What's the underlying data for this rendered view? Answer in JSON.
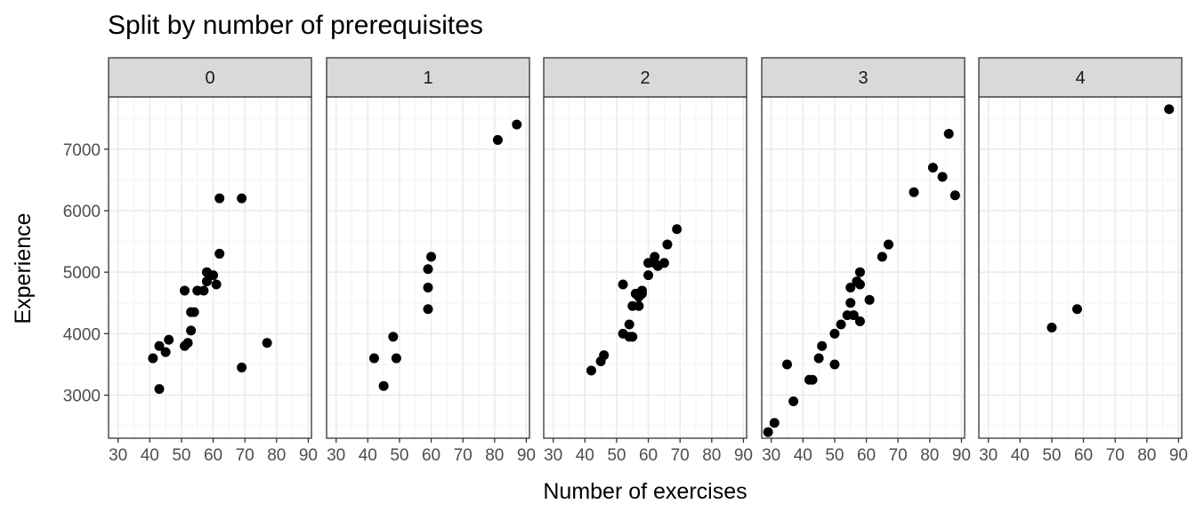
{
  "chart_data": {
    "type": "scatter",
    "title": "Split by number of prerequisites",
    "xlabel": "Number of exercises",
    "ylabel": "Experience",
    "xlim": [
      27,
      91
    ],
    "ylim": [
      2300,
      7850
    ],
    "x_ticks": [
      30,
      40,
      50,
      60,
      70,
      80,
      90
    ],
    "y_ticks": [
      3000,
      4000,
      5000,
      6000,
      7000
    ],
    "grid": true,
    "facet_by": "number of prerequisites",
    "panels": [
      {
        "label": "0",
        "points": [
          {
            "x": 41,
            "y": 3600
          },
          {
            "x": 43,
            "y": 3100
          },
          {
            "x": 43,
            "y": 3800
          },
          {
            "x": 45,
            "y": 3700
          },
          {
            "x": 46,
            "y": 3900
          },
          {
            "x": 51,
            "y": 3800
          },
          {
            "x": 51,
            "y": 4700
          },
          {
            "x": 52,
            "y": 3850
          },
          {
            "x": 53,
            "y": 4050
          },
          {
            "x": 53,
            "y": 4350
          },
          {
            "x": 54,
            "y": 4350
          },
          {
            "x": 55,
            "y": 4700
          },
          {
            "x": 57,
            "y": 4700
          },
          {
            "x": 58,
            "y": 4850
          },
          {
            "x": 58,
            "y": 5000
          },
          {
            "x": 60,
            "y": 4950
          },
          {
            "x": 61,
            "y": 4800
          },
          {
            "x": 62,
            "y": 5300
          },
          {
            "x": 62,
            "y": 6200
          },
          {
            "x": 69,
            "y": 6200
          },
          {
            "x": 69,
            "y": 3450
          },
          {
            "x": 77,
            "y": 3850
          }
        ]
      },
      {
        "label": "1",
        "points": [
          {
            "x": 42,
            "y": 3600
          },
          {
            "x": 45,
            "y": 3150
          },
          {
            "x": 48,
            "y": 3950
          },
          {
            "x": 49,
            "y": 3600
          },
          {
            "x": 59,
            "y": 4400
          },
          {
            "x": 59,
            "y": 4750
          },
          {
            "x": 59,
            "y": 5050
          },
          {
            "x": 60,
            "y": 5250
          },
          {
            "x": 81,
            "y": 7150
          },
          {
            "x": 87,
            "y": 7400
          }
        ]
      },
      {
        "label": "2",
        "points": [
          {
            "x": 42,
            "y": 3400
          },
          {
            "x": 45,
            "y": 3550
          },
          {
            "x": 46,
            "y": 3650
          },
          {
            "x": 52,
            "y": 4800
          },
          {
            "x": 52,
            "y": 4000
          },
          {
            "x": 54,
            "y": 3950
          },
          {
            "x": 54,
            "y": 4150
          },
          {
            "x": 55,
            "y": 3950
          },
          {
            "x": 55,
            "y": 4450
          },
          {
            "x": 56,
            "y": 4650
          },
          {
            "x": 57,
            "y": 4450
          },
          {
            "x": 57,
            "y": 4600
          },
          {
            "x": 58,
            "y": 4650
          },
          {
            "x": 58,
            "y": 4700
          },
          {
            "x": 60,
            "y": 4950
          },
          {
            "x": 60,
            "y": 5150
          },
          {
            "x": 62,
            "y": 5150
          },
          {
            "x": 62,
            "y": 5250
          },
          {
            "x": 63,
            "y": 5100
          },
          {
            "x": 65,
            "y": 5150
          },
          {
            "x": 66,
            "y": 5450
          },
          {
            "x": 69,
            "y": 5700
          }
        ]
      },
      {
        "label": "3",
        "points": [
          {
            "x": 29,
            "y": 2400
          },
          {
            "x": 31,
            "y": 2550
          },
          {
            "x": 35,
            "y": 3500
          },
          {
            "x": 37,
            "y": 2900
          },
          {
            "x": 42,
            "y": 3250
          },
          {
            "x": 43,
            "y": 3250
          },
          {
            "x": 45,
            "y": 3600
          },
          {
            "x": 46,
            "y": 3800
          },
          {
            "x": 50,
            "y": 3500
          },
          {
            "x": 50,
            "y": 4000
          },
          {
            "x": 52,
            "y": 4150
          },
          {
            "x": 54,
            "y": 4300
          },
          {
            "x": 55,
            "y": 4500
          },
          {
            "x": 55,
            "y": 4750
          },
          {
            "x": 56,
            "y": 4300
          },
          {
            "x": 57,
            "y": 4850
          },
          {
            "x": 58,
            "y": 4800
          },
          {
            "x": 58,
            "y": 5000
          },
          {
            "x": 58,
            "y": 4200
          },
          {
            "x": 61,
            "y": 4550
          },
          {
            "x": 65,
            "y": 5250
          },
          {
            "x": 67,
            "y": 5450
          },
          {
            "x": 75,
            "y": 6300
          },
          {
            "x": 81,
            "y": 6700
          },
          {
            "x": 84,
            "y": 6550
          },
          {
            "x": 86,
            "y": 7250
          },
          {
            "x": 88,
            "y": 6250
          }
        ]
      },
      {
        "label": "4",
        "points": [
          {
            "x": 50,
            "y": 4100
          },
          {
            "x": 58,
            "y": 4400
          },
          {
            "x": 87,
            "y": 7650
          }
        ]
      }
    ]
  },
  "colors": {
    "point": "#000000",
    "panel_border": "#333333",
    "strip_fill": "#d9d9d9",
    "grid_major": "#ebebeb",
    "grid_minor": "#f3f3f3",
    "tick": "#333333",
    "tick_label": "#4d4d4d"
  }
}
